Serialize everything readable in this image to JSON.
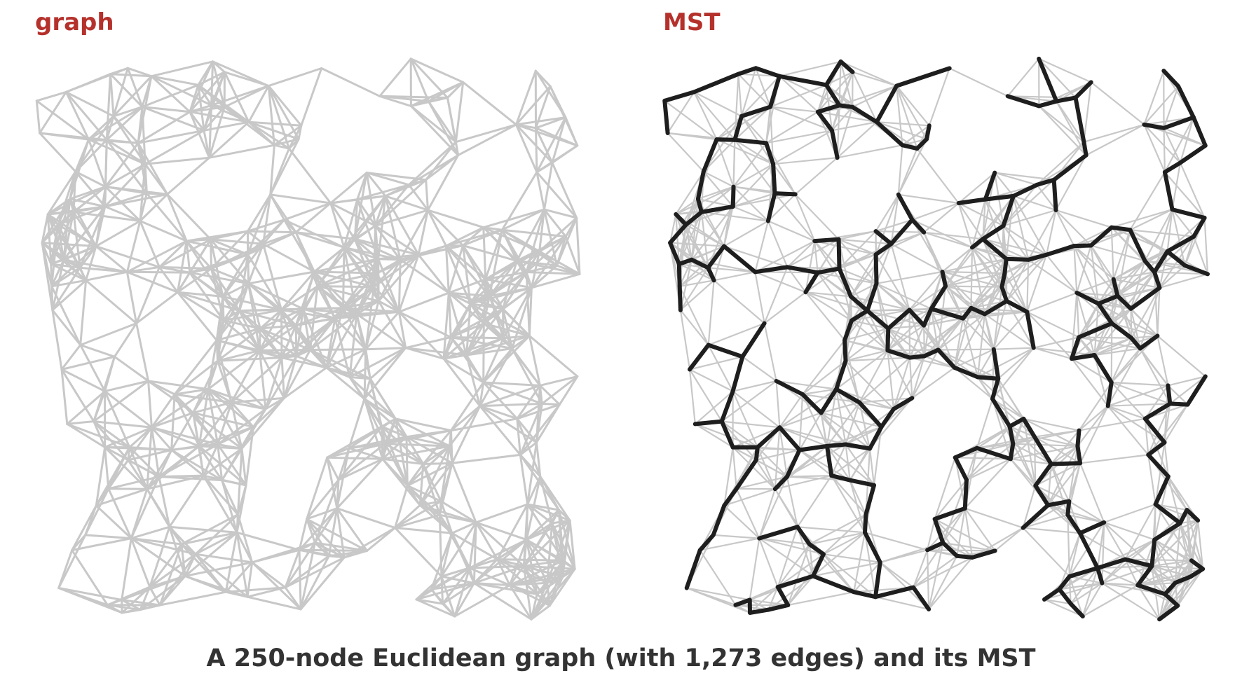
{
  "diagram": {
    "panels": [
      {
        "title": "graph"
      },
      {
        "title": "MST"
      }
    ],
    "caption": "A 250-node Euclidean graph (with 1,273 edges) and its MST",
    "node_count": 250,
    "edge_count": 1273,
    "colors": {
      "title": "#b5312b",
      "graph_edge": "#c8c8c8",
      "mst_edge": "#1e1e1e",
      "caption": "#333333"
    }
  }
}
